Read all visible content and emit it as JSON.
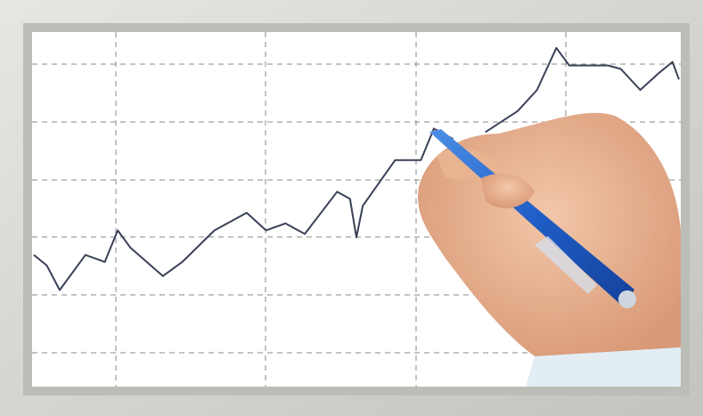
{
  "chart_data": {
    "type": "line",
    "xlim": [
      0,
      100
    ],
    "ylim": [
      0,
      100
    ],
    "color": "#3a4257",
    "x": [
      0,
      2,
      4,
      8,
      11,
      13,
      15,
      20,
      23,
      28,
      33,
      36,
      39,
      42,
      47,
      49,
      50,
      51,
      56,
      60,
      62,
      65,
      67,
      70,
      75,
      78,
      81,
      83,
      89,
      91,
      94,
      97,
      99,
      100
    ],
    "values": [
      37,
      34,
      27,
      37,
      35,
      44,
      39,
      31,
      35,
      44,
      49,
      44,
      46,
      43,
      55,
      53,
      42,
      51,
      64,
      64,
      73,
      70,
      null,
      72,
      78,
      84,
      96,
      91,
      91,
      90,
      84,
      89,
      92,
      87
    ]
  }
}
